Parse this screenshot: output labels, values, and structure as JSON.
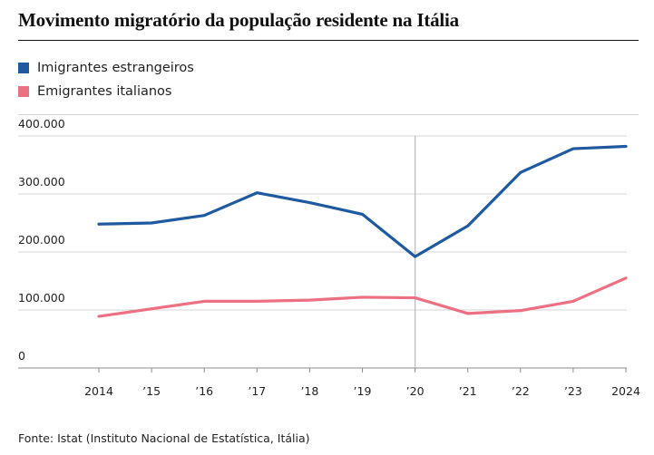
{
  "title": "Movimento migratório da população residente na Itália",
  "source": "Fonte: Istat (Instituto Nacional de Estatística, Itália)",
  "colors": {
    "immigrants": "#1f5aa0",
    "emigrants": "#ec6f82",
    "grid": "#d6d6d6",
    "marker": "#bdbdbd"
  },
  "chart_data": {
    "type": "line",
    "title": "Movimento migratório da população residente na Itália",
    "x": [
      2014,
      2015,
      2016,
      2017,
      2018,
      2019,
      2020,
      2021,
      2022,
      2023,
      2024
    ],
    "x_tick_labels": [
      "2014",
      "’15",
      "’16",
      "’17",
      "’18",
      "’19",
      "’20",
      "’21",
      "’22",
      "’23",
      "2024"
    ],
    "y_tick_labels": [
      "0",
      "100.000",
      "200.000",
      "300.000",
      "400.000"
    ],
    "y_ticks": [
      0,
      100000,
      200000,
      300000,
      400000
    ],
    "ylim": [
      0,
      400000
    ],
    "highlight_x": 2020,
    "legend_position": "top-left",
    "grid": true,
    "series": [
      {
        "name": "Imigrantes estrangeiros",
        "color": "#1f5aa0",
        "values": [
          248000,
          250000,
          263000,
          302000,
          285000,
          265000,
          192000,
          245000,
          337000,
          378000,
          382000
        ]
      },
      {
        "name": "Emigrantes italianos",
        "color": "#ec6f82",
        "values": [
          89000,
          102000,
          115000,
          115000,
          117000,
          122000,
          121000,
          94000,
          99000,
          115000,
          155000
        ]
      }
    ]
  }
}
